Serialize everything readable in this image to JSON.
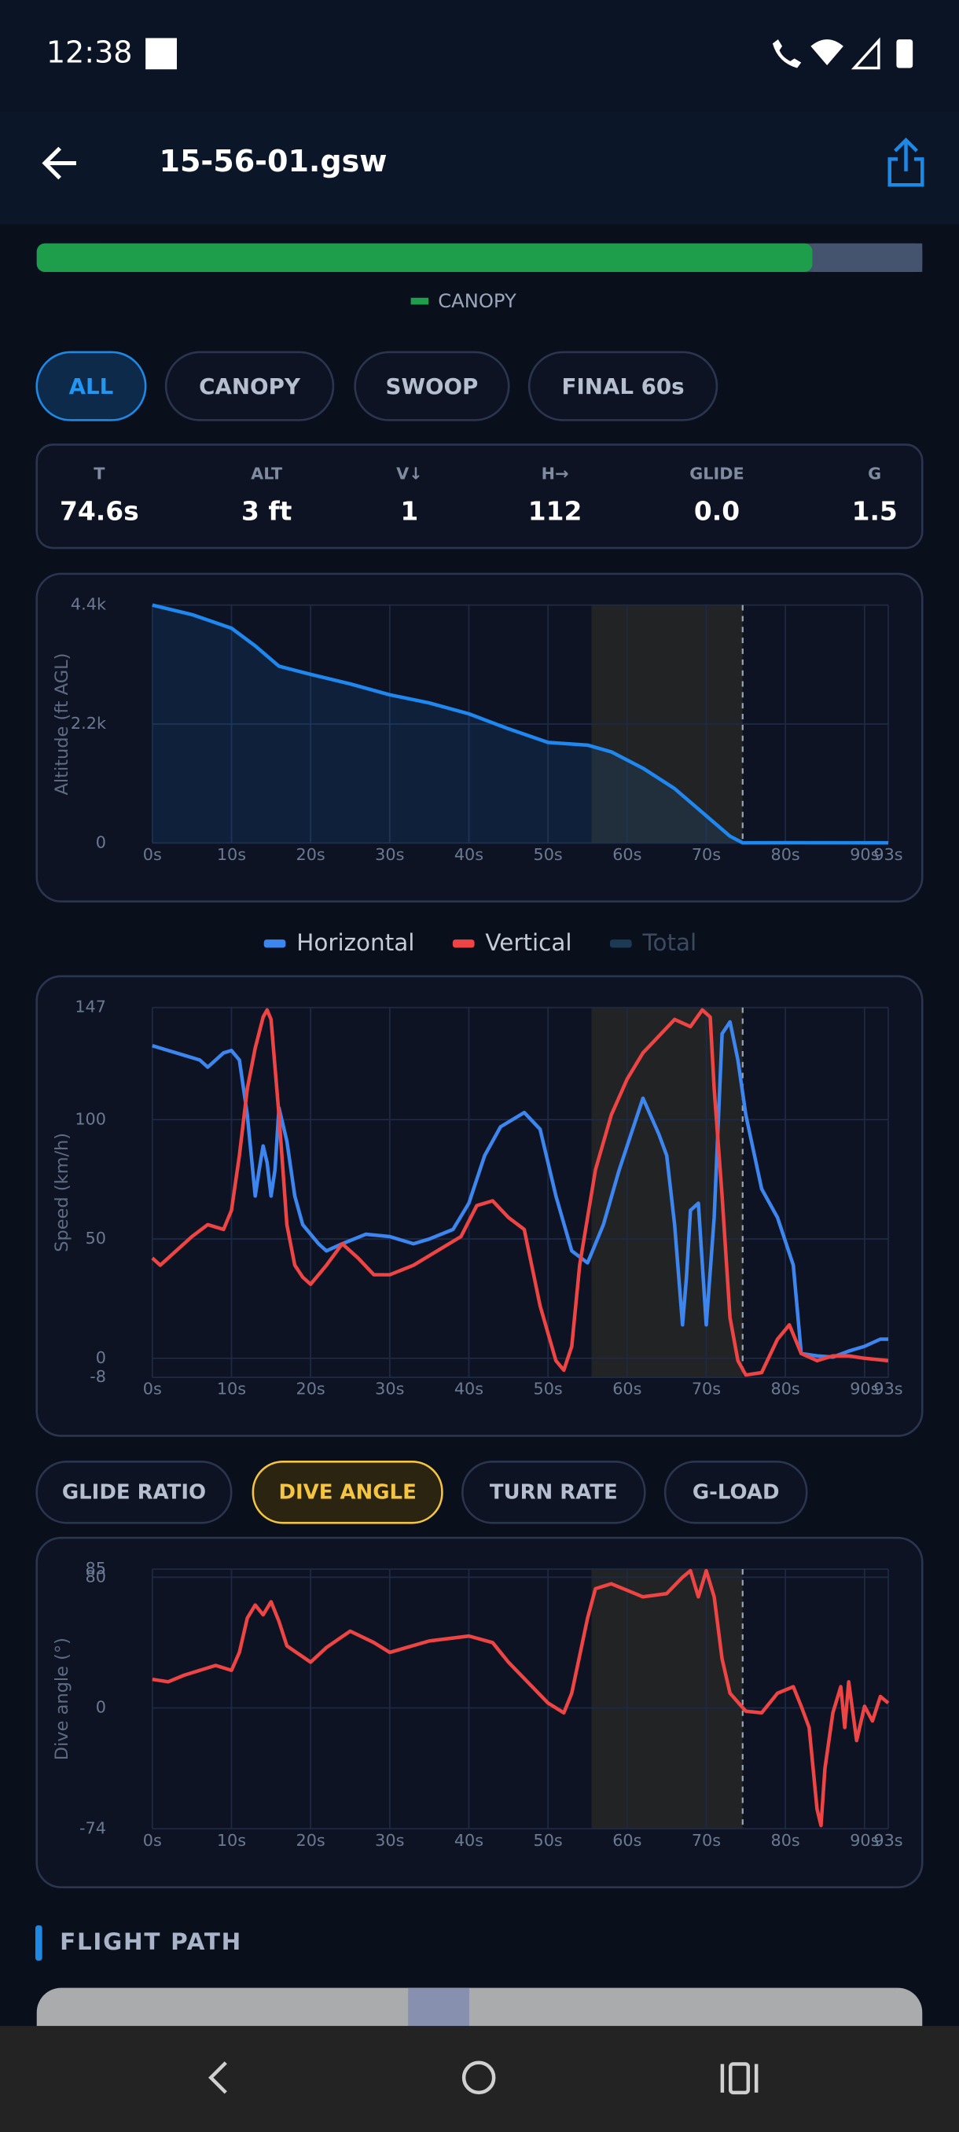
{
  "status_bar": {
    "time": "12:38"
  },
  "app_bar": {
    "title": "15-56-01.gsw"
  },
  "phase_bar": {
    "segments": [
      {
        "name": "CANOPY",
        "color": "#1e9e4a",
        "value": 87.6
      },
      {
        "color": "#44546e",
        "value": 12.4
      }
    ]
  },
  "tabs": [
    "ALL",
    "CANOPY",
    "SWOOP",
    "FINAL 60s"
  ],
  "selected_tab": 0,
  "stats": [
    {
      "label": "T",
      "value": "74.6s"
    },
    {
      "label": "ALT",
      "value": "3 ft"
    },
    {
      "label": "V↓",
      "value": "1"
    },
    {
      "label": "H→",
      "value": "112"
    },
    {
      "label": "GLIDE",
      "value": "0.0"
    },
    {
      "label": "G",
      "value": "1.5"
    }
  ],
  "metric_buttons": [
    "GLIDE RATIO",
    "DIVE ANGLE",
    "TURN RATE",
    "G-LOAD"
  ],
  "selected_metric": 1,
  "section": {
    "title": "FLIGHT PATH"
  },
  "chart_data": [
    {
      "type": "line",
      "area": true,
      "y_label": "Altitude (ft AGL)",
      "grid": true,
      "xlim": [
        0,
        93
      ],
      "ylim": [
        0,
        4400
      ],
      "xticks": [
        {
          "value": 0,
          "label": "0s"
        },
        {
          "value": 10,
          "label": "10s"
        },
        {
          "value": 20,
          "label": "20s"
        },
        {
          "value": 30,
          "label": "30s"
        },
        {
          "value": 40,
          "label": "40s"
        },
        {
          "value": 50,
          "label": "50s"
        },
        {
          "value": 60,
          "label": "60s"
        },
        {
          "value": 70,
          "label": "70s"
        },
        {
          "value": 80,
          "label": "80s"
        },
        {
          "value": 90,
          "label": "90s"
        },
        {
          "value": 93,
          "label": "93s"
        }
      ],
      "yticks": [
        0,
        {
          "value": 2200,
          "label": "2.2k"
        },
        {
          "value": 4400,
          "label": "4.4k"
        }
      ],
      "highlight": [
        55.5,
        74.6
      ],
      "marker": 74.6,
      "series": [
        {
          "color": "#1e88f0",
          "x": [
            0,
            5,
            10,
            13,
            16,
            20,
            25,
            30,
            35,
            40,
            45,
            50,
            55,
            58,
            62,
            66,
            70,
            73,
            74.6,
            80,
            93
          ],
          "values": [
            4400,
            4224,
            3972,
            3646,
            3269,
            3118,
            2942,
            2741,
            2590,
            2389,
            2112,
            1860,
            1810,
            1685,
            1383,
            1006,
            503,
            126,
            3,
            5,
            3
          ]
        }
      ]
    },
    {
      "type": "line",
      "y_label": "Speed (km/h)",
      "grid": true,
      "legend": "top",
      "xlim": [
        0,
        93
      ],
      "ylim": [
        -8,
        147
      ],
      "xticks": [
        {
          "value": 0,
          "label": "0s"
        },
        {
          "value": 10,
          "label": "10s"
        },
        {
          "value": 20,
          "label": "20s"
        },
        {
          "value": 30,
          "label": "30s"
        },
        {
          "value": 40,
          "label": "40s"
        },
        {
          "value": 50,
          "label": "50s"
        },
        {
          "value": 60,
          "label": "60s"
        },
        {
          "value": 70,
          "label": "70s"
        },
        {
          "value": 80,
          "label": "80s"
        },
        {
          "value": 90,
          "label": "90s"
        },
        {
          "value": 93,
          "label": "93s"
        }
      ],
      "yticks": [
        -8,
        0,
        50,
        100,
        147
      ],
      "highlight": [
        55.5,
        74.6
      ],
      "marker": 74.6,
      "series": [
        {
          "name": "Horizontal",
          "color": "#3d86f0",
          "x": [
            0,
            2,
            4,
            6,
            7,
            9,
            10,
            11,
            12,
            12.5,
            13,
            13.5,
            14,
            14.5,
            15,
            15.5,
            16,
            17,
            18,
            19,
            21,
            22,
            24,
            27,
            30,
            33,
            35,
            38,
            40,
            42,
            44,
            47,
            49,
            51,
            53,
            55,
            57,
            59,
            61,
            62,
            64,
            65,
            66,
            67,
            67.5,
            68,
            69,
            70,
            71,
            72,
            73,
            74,
            75,
            77,
            79,
            81,
            82,
            84,
            86,
            88,
            90,
            92,
            93
          ],
          "values": [
            131,
            129,
            127,
            125,
            122,
            128,
            129,
            125,
            102,
            85,
            68,
            79,
            89,
            82,
            68,
            79,
            105,
            91,
            68,
            56,
            48,
            45,
            48,
            52,
            51,
            48,
            50,
            54,
            65,
            85,
            97,
            103,
            96,
            68,
            45,
            40,
            56,
            79,
            99,
            109,
            94,
            85,
            56,
            14,
            34,
            62,
            65,
            14,
            59,
            136,
            141,
            125,
            102,
            71,
            59,
            39,
            2,
            1,
            0.5,
            3,
            5,
            8,
            8
          ]
        },
        {
          "name": "Vertical",
          "color": "#ee4444",
          "x": [
            0,
            1,
            3,
            5,
            7,
            9,
            10,
            11,
            12,
            13,
            14,
            14.5,
            15,
            16,
            17,
            18,
            19,
            20,
            22,
            24,
            26,
            28,
            30,
            33,
            36,
            39,
            41,
            43,
            45,
            47,
            49,
            51,
            52,
            53,
            54,
            56,
            58,
            60,
            62,
            64,
            66,
            68,
            69.5,
            70.5,
            71,
            72,
            73,
            74,
            75,
            77,
            79,
            80.5,
            82,
            84,
            86,
            88,
            90,
            93
          ],
          "values": [
            42,
            39,
            45,
            51,
            56,
            54,
            62,
            85,
            113,
            130,
            143,
            146,
            142,
            102,
            56,
            39,
            34,
            31,
            39,
            48,
            42,
            35,
            35,
            39,
            45,
            51,
            64,
            66,
            59,
            54,
            22,
            -1,
            -5,
            5,
            39,
            79,
            102,
            117,
            128,
            135,
            142,
            139,
            146,
            143,
            113,
            68,
            17,
            -1,
            -7,
            -6,
            8,
            14,
            2,
            -1,
            1,
            1,
            0,
            -1
          ]
        },
        {
          "name": "Total",
          "color": "#1d3a55",
          "visible": false
        }
      ]
    },
    {
      "type": "line",
      "y_label": "Dive angle (°)",
      "grid": true,
      "xlim": [
        0,
        93
      ],
      "ylim": [
        -74,
        85
      ],
      "xticks": [
        {
          "value": 0,
          "label": "0s"
        },
        {
          "value": 10,
          "label": "10s"
        },
        {
          "value": 20,
          "label": "20s"
        },
        {
          "value": 30,
          "label": "30s"
        },
        {
          "value": 40,
          "label": "40s"
        },
        {
          "value": 50,
          "label": "50s"
        },
        {
          "value": 60,
          "label": "60s"
        },
        {
          "value": 70,
          "label": "70s"
        },
        {
          "value": 80,
          "label": "80s"
        },
        {
          "value": 90,
          "label": "90s"
        },
        {
          "value": 93,
          "label": "93s"
        }
      ],
      "yticks": [
        -74,
        0,
        80,
        85
      ],
      "highlight": [
        55.5,
        74.6
      ],
      "marker": 74.6,
      "series": [
        {
          "color": "#ee4444",
          "x": [
            0,
            2,
            4,
            8,
            10,
            11,
            12,
            13,
            14,
            15,
            16,
            17,
            20,
            22,
            25,
            28,
            30,
            35,
            40,
            43,
            45,
            48,
            50,
            52,
            53,
            55,
            56,
            58,
            60,
            62,
            65,
            67,
            68,
            69,
            70,
            71,
            72,
            73,
            75,
            77,
            79,
            81,
            82,
            83,
            84,
            84.5,
            85,
            86,
            87,
            87.5,
            88,
            89,
            90,
            91,
            92,
            93
          ],
          "values": [
            17.5,
            16,
            20,
            26,
            23,
            34,
            55,
            63,
            57,
            65,
            53,
            38,
            28,
            37,
            47,
            40,
            34,
            41,
            44,
            40,
            28,
            13,
            3,
            -3,
            9,
            55,
            73,
            76,
            72,
            68,
            70,
            80,
            84,
            68,
            84,
            68,
            30,
            9,
            -2,
            -3,
            9,
            13,
            1,
            -12,
            -62,
            -72,
            -37,
            -3,
            13,
            -12,
            16,
            -20,
            1,
            -8,
            7,
            3
          ]
        }
      ]
    }
  ]
}
